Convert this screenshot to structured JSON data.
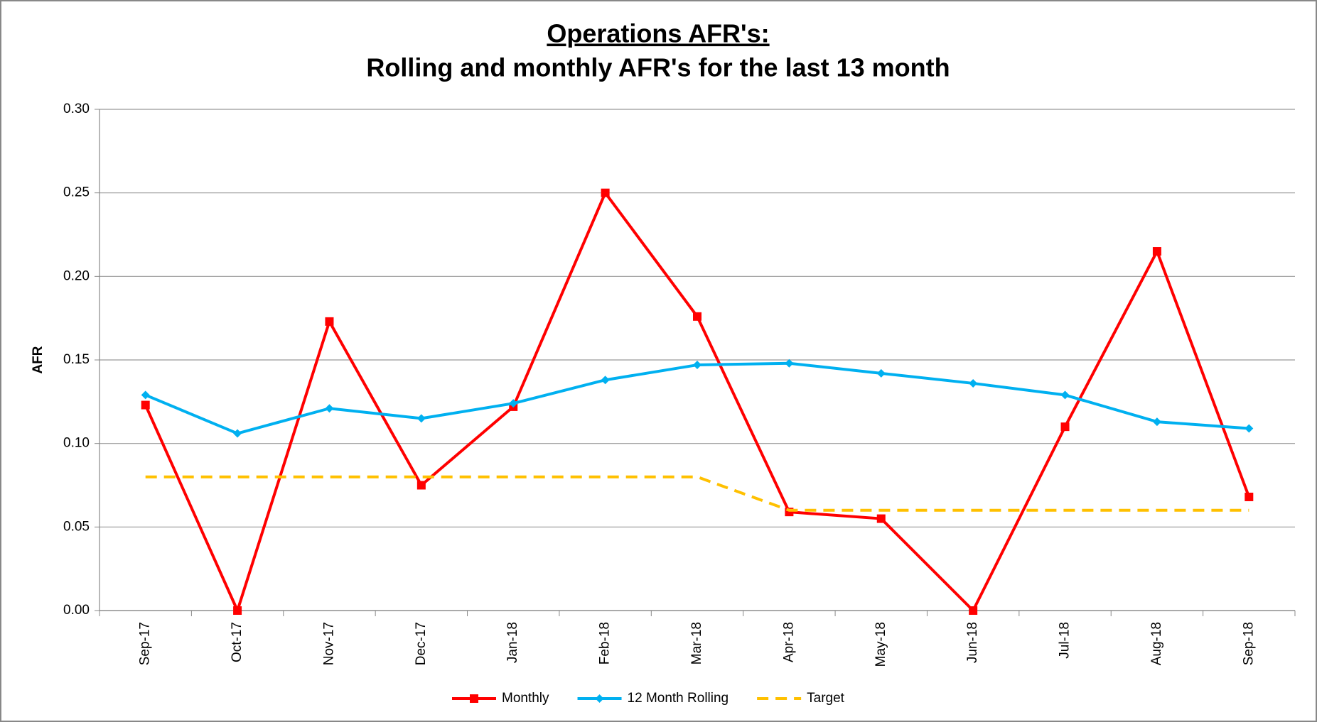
{
  "chart_data": {
    "type": "line",
    "title": "Operations AFR's:",
    "subtitle": "Rolling and monthly AFR's for the last 13 month",
    "y_label": "AFR",
    "categories": [
      "Sep-17",
      "Oct-17",
      "Nov-17",
      "Dec-17",
      "Jan-18",
      "Feb-18",
      "Mar-18",
      "Apr-18",
      "May-18",
      "Jun-18",
      "Jul-18",
      "Aug-18",
      "Sep-18"
    ],
    "series": [
      {
        "name": "Monthly",
        "color": "#ff0000",
        "marker": "square",
        "dash": false,
        "values": [
          0.123,
          0,
          0.173,
          0.075,
          0.122,
          0.25,
          0.176,
          0.059,
          0.055,
          0,
          0.11,
          0.215,
          0.068
        ]
      },
      {
        "name": "12 Month Rolling",
        "color": "#00b0f0",
        "marker": "diamond",
        "dash": false,
        "values": [
          0.129,
          0.106,
          0.121,
          0.115,
          0.124,
          0.138,
          0.147,
          0.148,
          0.142,
          0.136,
          0.129,
          0.113,
          0.109
        ]
      },
      {
        "name": "Target",
        "color": "#ffc000",
        "marker": "none",
        "dash": true,
        "values": [
          0.08,
          0.08,
          0.08,
          0.08,
          0.08,
          0.08,
          0.08,
          0.06,
          0.06,
          0.06,
          0.06,
          0.06,
          0.06
        ]
      }
    ],
    "ylim": [
      0,
      0.3
    ],
    "yticks": [
      {
        "value": 0,
        "label": "0.00"
      },
      {
        "value": 0.05,
        "label": "0.05"
      },
      {
        "value": 0.1,
        "label": "0.10"
      },
      {
        "value": 0.15,
        "label": "0.15"
      },
      {
        "value": 0.2,
        "label": "0.20"
      },
      {
        "value": 0.25,
        "label": "0.25"
      },
      {
        "value": 0.3,
        "label": "0.30"
      }
    ],
    "grid": true,
    "legend": "bottom"
  }
}
